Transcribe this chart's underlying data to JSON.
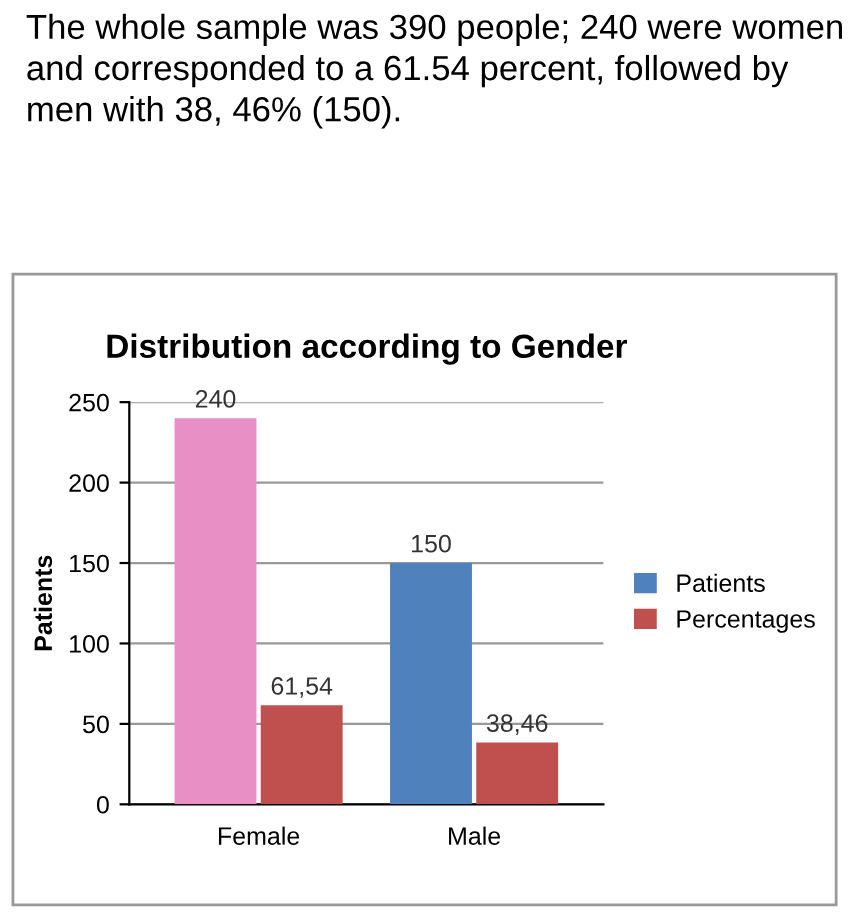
{
  "chart_data": {
    "type": "bar",
    "title": "Distribution according to Gender",
    "ylabel": "Patients",
    "annotations": [
      "The whole sample was 390 people; 240 were women and corresponded to a 61.54 percent, followed by men with 38, 46% (150)."
    ],
    "categories": [
      "Female",
      "Male"
    ],
    "series": [
      {
        "name": "Patients",
        "color": "#4f81bd",
        "colors": [
          "#e88fc6",
          "#4f81bd"
        ],
        "values": [
          240,
          150
        ],
        "value_labels": [
          "240",
          "150"
        ]
      },
      {
        "name": "Percentages",
        "color": "#c0504d",
        "values": [
          61.54,
          38.46
        ],
        "value_labels": [
          "61,54",
          "38,46"
        ]
      }
    ],
    "ylim": [
      0,
      250
    ],
    "yticks": [
      0,
      50,
      100,
      150,
      200,
      250
    ],
    "grid": "y",
    "legend": "right"
  }
}
